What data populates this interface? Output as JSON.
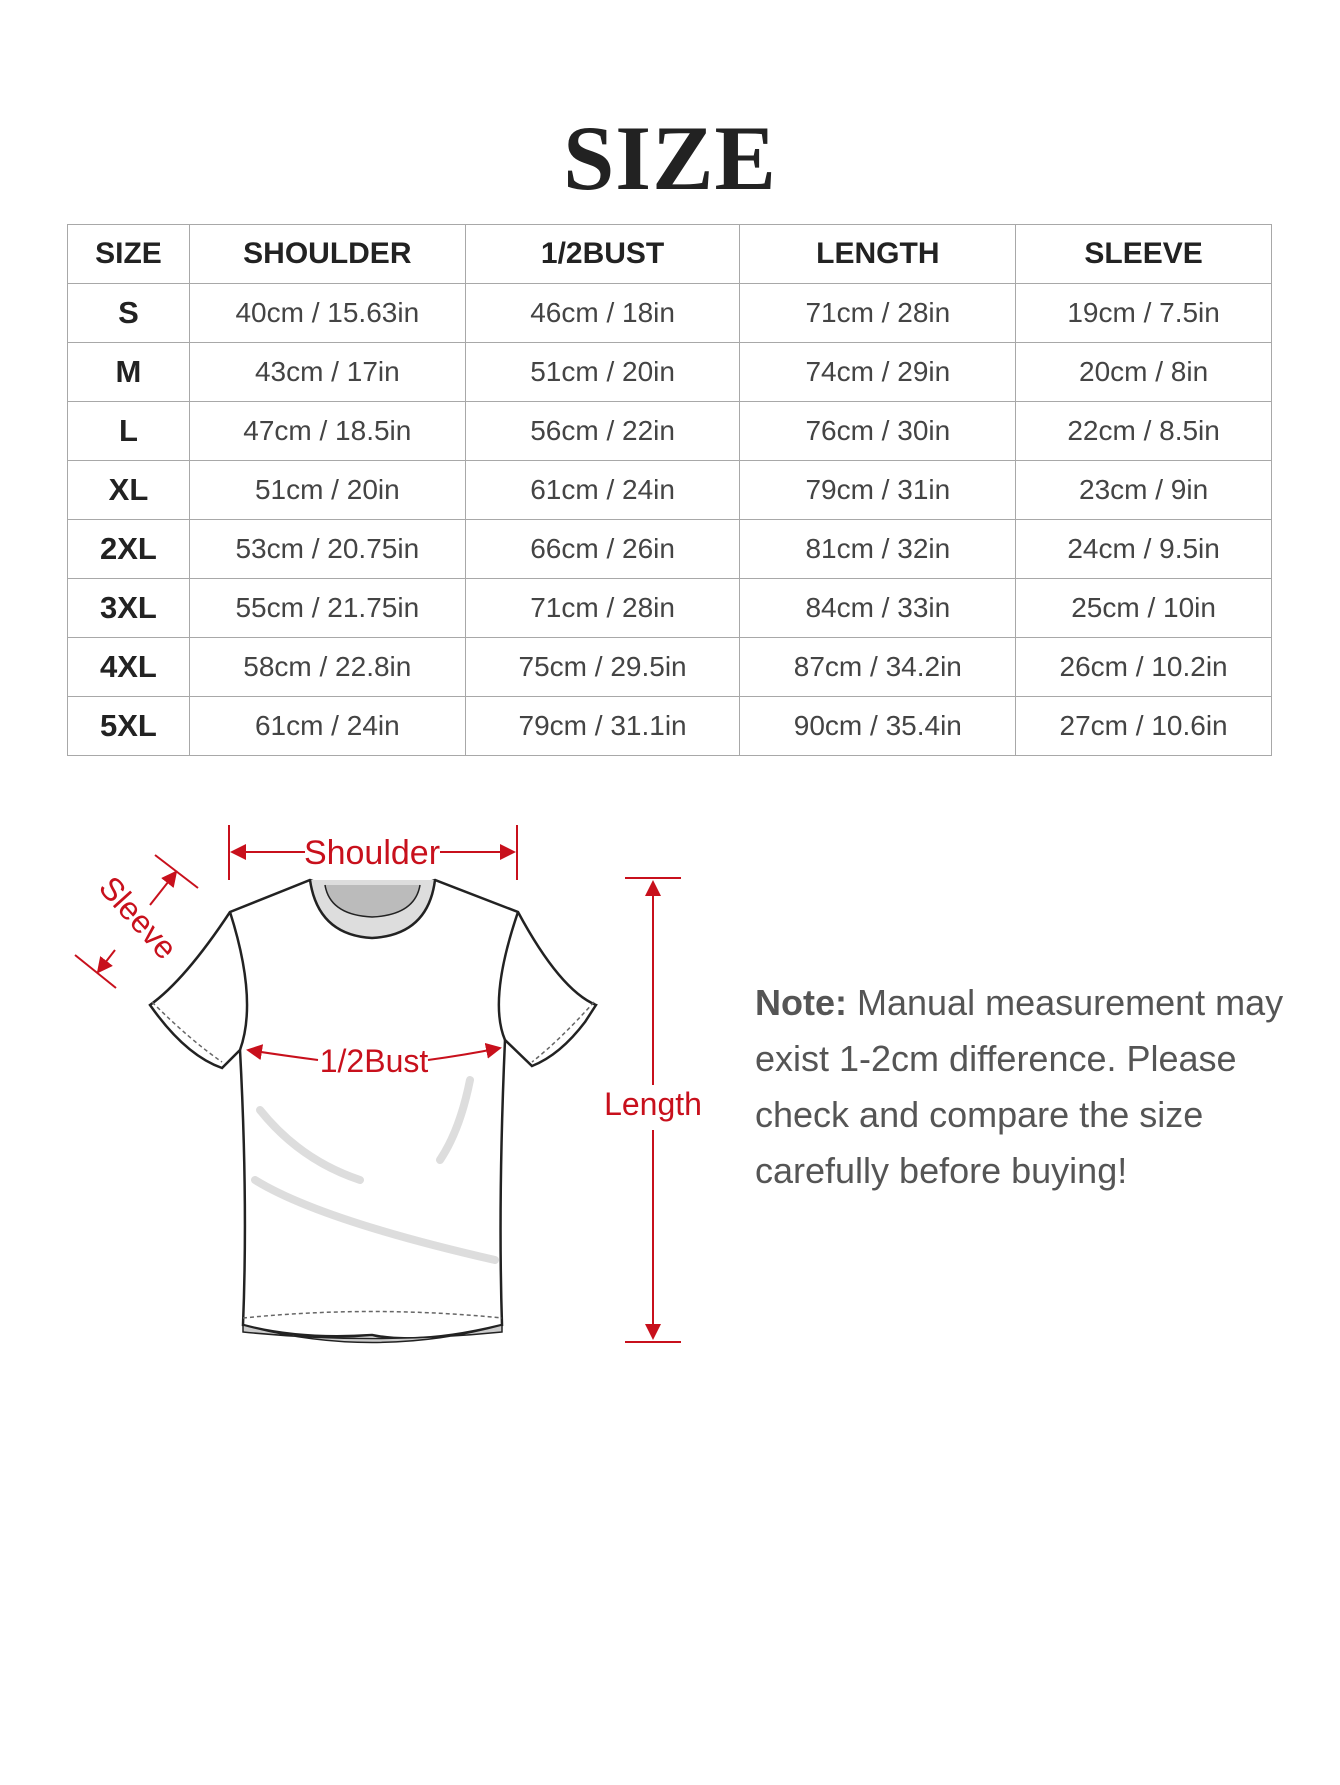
{
  "title": "SIZE",
  "table": {
    "headers": [
      "SIZE",
      "SHOULDER",
      "1/2BUST",
      "LENGTH",
      "SLEEVE"
    ],
    "rows": [
      [
        "S",
        "40cm / 15.63in",
        "46cm / 18in",
        "71cm / 28in",
        "19cm / 7.5in"
      ],
      [
        "M",
        "43cm / 17in",
        "51cm / 20in",
        "74cm / 29in",
        "20cm / 8in"
      ],
      [
        "L",
        "47cm / 18.5in",
        "56cm / 22in",
        "76cm / 30in",
        "22cm / 8.5in"
      ],
      [
        "XL",
        "51cm / 20in",
        "61cm / 24in",
        "79cm / 31in",
        "23cm / 9in"
      ],
      [
        "2XL",
        "53cm / 20.75in",
        "66cm / 26in",
        "81cm / 32in",
        "24cm / 9.5in"
      ],
      [
        "3XL",
        "55cm / 21.75in",
        "71cm / 28in",
        "84cm / 33in",
        "25cm / 10in"
      ],
      [
        "4XL",
        "58cm / 22.8in",
        "75cm / 29.5in",
        "87cm / 34.2in",
        "26cm / 10.2in"
      ],
      [
        "5XL",
        "61cm / 24in",
        "79cm / 31.1in",
        "90cm / 35.4in",
        "27cm / 10.6in"
      ]
    ]
  },
  "diagram": {
    "shoulder_label": "Shoulder",
    "sleeve_label": "Sleeve",
    "bust_label": "1/2Bust",
    "length_label": "Length",
    "accent_color": "#c8101c"
  },
  "note": {
    "label": "Note:",
    "text": " Manual measurement may exist 1-2cm difference. Please check and compare the size carefully before buying!"
  }
}
